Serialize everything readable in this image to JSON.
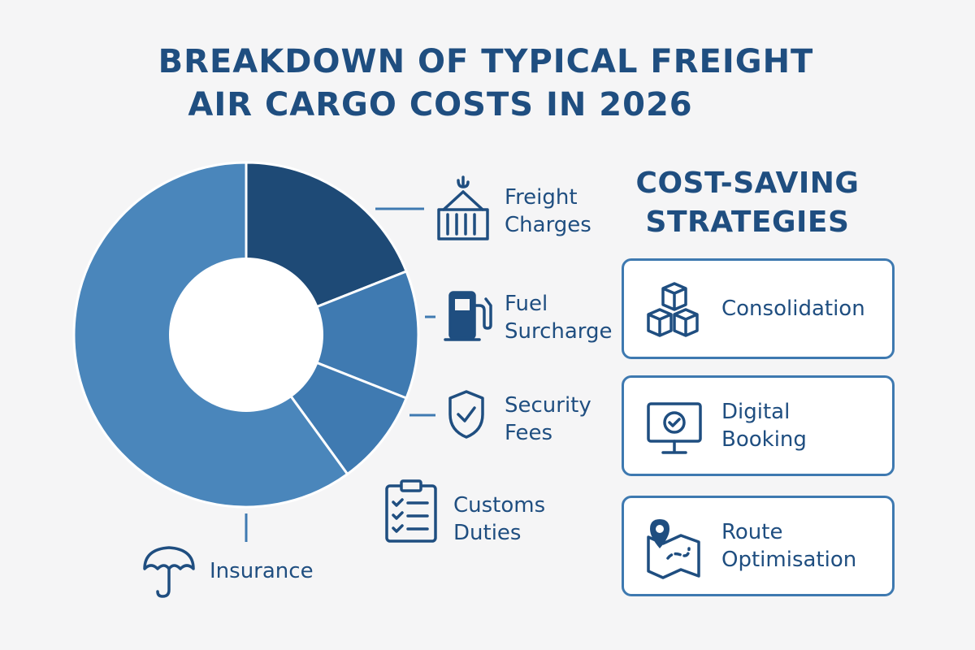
{
  "title_line1": "BREAKDOWN OF TYPICAL FREIGHT",
  "title_line2": "AIR CARGO COSTS IN 2026",
  "chart_data": {
    "type": "pie",
    "style": "donut",
    "title": "BREAKDOWN OF TYPICAL FREIGHT AIR CARGO COSTS IN 2026",
    "start_angle_deg": 0,
    "slices": [
      {
        "name": "Freight Charges",
        "value": 19,
        "color": "#1e4a76"
      },
      {
        "name": "Fuel Surcharge",
        "value": 12,
        "color": "#3f7ab1"
      },
      {
        "name": "Security Fees",
        "value": 9,
        "color": "#3f7ab1"
      },
      {
        "name": "Customs Duties + Insurance",
        "value": 60,
        "color": "#4a86bb"
      }
    ],
    "legend_placement": "right"
  },
  "cost_items": [
    {
      "lines": [
        "Freight",
        "Charges"
      ],
      "icon": "cargo-container-icon"
    },
    {
      "lines": [
        "Fuel",
        "Surcharge"
      ],
      "icon": "fuel-pump-icon"
    },
    {
      "lines": [
        "Security",
        "Fees"
      ],
      "icon": "shield-check-icon"
    },
    {
      "lines": [
        "Customs",
        "Duties"
      ],
      "icon": "clipboard-checklist-icon"
    },
    {
      "lines": [
        "Insurance"
      ],
      "icon": "umbrella-icon"
    }
  ],
  "strategies": {
    "title_line1": "COST-SAVING",
    "title_line2": "STRATEGIES",
    "items": [
      {
        "lines": [
          "Consolidation"
        ],
        "icon": "boxes-icon"
      },
      {
        "lines": [
          "Digital",
          "Booking"
        ],
        "icon": "monitor-check-icon"
      },
      {
        "lines": [
          "Route",
          "Optimisation"
        ],
        "icon": "map-route-icon"
      }
    ]
  },
  "colors": {
    "primary_text": "#1f4e80",
    "dark_slice": "#1e4a76",
    "mid_slice": "#3f7ab1",
    "main_slice": "#4a86bb",
    "card_border": "#3e79b0",
    "background": "#f5f5f6"
  }
}
